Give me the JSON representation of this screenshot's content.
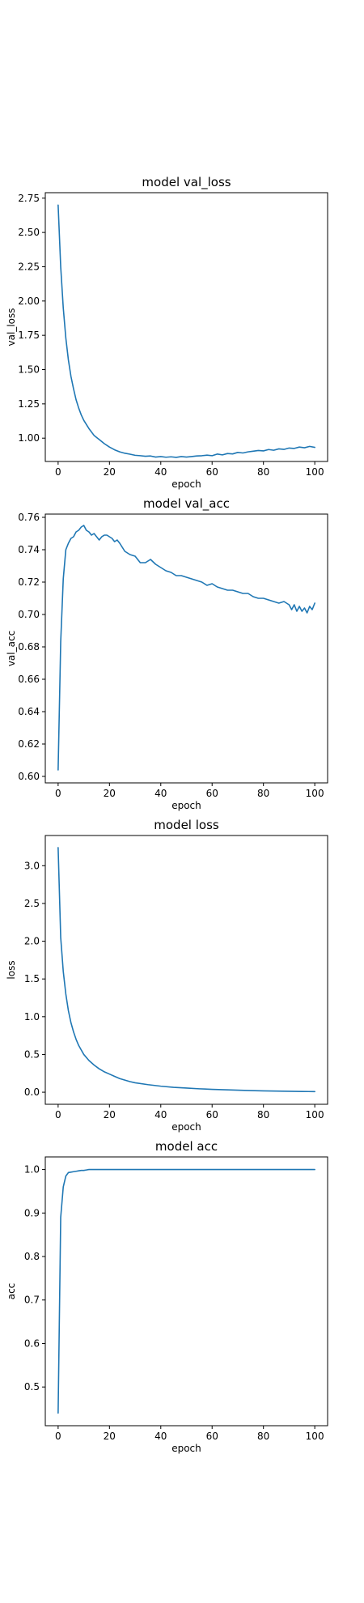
{
  "chart_data": [
    {
      "type": "line",
      "title": "model val_loss",
      "xlabel": "epoch",
      "ylabel": "val_loss",
      "xlim": [
        -5,
        105
      ],
      "ylim": [
        0.83,
        2.79
      ],
      "xticks": [
        0,
        20,
        40,
        60,
        80,
        100
      ],
      "xtick_labels": [
        "0",
        "20",
        "40",
        "60",
        "80",
        "100"
      ],
      "yticks": [
        1.0,
        1.25,
        1.5,
        1.75,
        2.0,
        2.25,
        2.5,
        2.75
      ],
      "ytick_labels": [
        "1.00",
        "1.25",
        "1.50",
        "1.75",
        "2.00",
        "2.25",
        "2.50",
        "2.75"
      ],
      "grid": false,
      "color": "#1f77b4",
      "series": [
        {
          "x": [
            0,
            1,
            2,
            3,
            4,
            5,
            6,
            7,
            8,
            9,
            10,
            12,
            14,
            16,
            18,
            20,
            22,
            24,
            26,
            28,
            30,
            32,
            34,
            36,
            38,
            40,
            42,
            44,
            46,
            48,
            50,
            52,
            54,
            56,
            58,
            60,
            62,
            64,
            66,
            68,
            70,
            72,
            74,
            76,
            78,
            80,
            82,
            84,
            86,
            88,
            90,
            92,
            94,
            96,
            98,
            100
          ],
          "values": [
            2.7,
            2.25,
            1.95,
            1.73,
            1.57,
            1.45,
            1.36,
            1.28,
            1.22,
            1.17,
            1.13,
            1.07,
            1.02,
            0.99,
            0.96,
            0.935,
            0.915,
            0.9,
            0.89,
            0.883,
            0.875,
            0.872,
            0.868,
            0.87,
            0.862,
            0.866,
            0.861,
            0.864,
            0.86,
            0.866,
            0.862,
            0.866,
            0.87,
            0.872,
            0.876,
            0.872,
            0.884,
            0.878,
            0.888,
            0.885,
            0.896,
            0.892,
            0.9,
            0.905,
            0.91,
            0.907,
            0.917,
            0.912,
            0.922,
            0.918,
            0.928,
            0.925,
            0.935,
            0.93,
            0.94,
            0.933
          ]
        }
      ]
    },
    {
      "type": "line",
      "title": "model val_acc",
      "xlabel": "epoch",
      "ylabel": "val_acc",
      "xlim": [
        -5,
        105
      ],
      "ylim": [
        0.596,
        0.762
      ],
      "xticks": [
        0,
        20,
        40,
        60,
        80,
        100
      ],
      "xtick_labels": [
        "0",
        "20",
        "40",
        "60",
        "80",
        "100"
      ],
      "yticks": [
        0.6,
        0.62,
        0.64,
        0.66,
        0.68,
        0.7,
        0.72,
        0.74,
        0.76
      ],
      "ytick_labels": [
        "0.60",
        "0.62",
        "0.64",
        "0.66",
        "0.68",
        "0.70",
        "0.72",
        "0.74",
        "0.76"
      ],
      "grid": false,
      "color": "#1f77b4",
      "series": [
        {
          "x": [
            0,
            1,
            2,
            3,
            4,
            5,
            6,
            7,
            8,
            9,
            10,
            11,
            12,
            13,
            14,
            15,
            16,
            17,
            18,
            19,
            20,
            21,
            22,
            23,
            24,
            26,
            28,
            30,
            32,
            34,
            36,
            38,
            40,
            42,
            44,
            46,
            48,
            50,
            52,
            54,
            56,
            58,
            60,
            62,
            64,
            66,
            68,
            70,
            72,
            74,
            76,
            78,
            80,
            82,
            84,
            86,
            88,
            90,
            91,
            92,
            93,
            94,
            95,
            96,
            97,
            98,
            99,
            100
          ],
          "values": [
            0.604,
            0.683,
            0.722,
            0.74,
            0.744,
            0.747,
            0.748,
            0.751,
            0.752,
            0.754,
            0.755,
            0.752,
            0.751,
            0.749,
            0.75,
            0.748,
            0.746,
            0.748,
            0.749,
            0.749,
            0.748,
            0.747,
            0.745,
            0.746,
            0.744,
            0.739,
            0.737,
            0.736,
            0.732,
            0.732,
            0.734,
            0.731,
            0.729,
            0.727,
            0.726,
            0.724,
            0.724,
            0.723,
            0.722,
            0.721,
            0.72,
            0.718,
            0.719,
            0.717,
            0.716,
            0.715,
            0.715,
            0.714,
            0.713,
            0.713,
            0.711,
            0.71,
            0.71,
            0.709,
            0.708,
            0.707,
            0.708,
            0.706,
            0.703,
            0.706,
            0.702,
            0.705,
            0.702,
            0.704,
            0.701,
            0.705,
            0.703,
            0.707
          ]
        }
      ]
    },
    {
      "type": "line",
      "title": "model loss",
      "xlabel": "epoch",
      "ylabel": "loss",
      "xlim": [
        -5,
        105
      ],
      "ylim": [
        -0.16,
        3.4
      ],
      "xticks": [
        0,
        20,
        40,
        60,
        80,
        100
      ],
      "xtick_labels": [
        "0",
        "20",
        "40",
        "60",
        "80",
        "100"
      ],
      "yticks": [
        0.0,
        0.5,
        1.0,
        1.5,
        2.0,
        2.5,
        3.0
      ],
      "ytick_labels": [
        "0.0",
        "0.5",
        "1.0",
        "1.5",
        "2.0",
        "2.5",
        "3.0"
      ],
      "grid": false,
      "color": "#1f77b4",
      "series": [
        {
          "x": [
            0,
            1,
            2,
            3,
            4,
            5,
            6,
            7,
            8,
            9,
            10,
            12,
            14,
            16,
            18,
            20,
            22,
            24,
            26,
            28,
            30,
            35,
            40,
            45,
            50,
            55,
            60,
            65,
            70,
            75,
            80,
            85,
            90,
            95,
            100
          ],
          "values": [
            3.24,
            2.05,
            1.6,
            1.3,
            1.08,
            0.92,
            0.8,
            0.7,
            0.62,
            0.56,
            0.5,
            0.42,
            0.36,
            0.31,
            0.27,
            0.24,
            0.21,
            0.18,
            0.16,
            0.14,
            0.125,
            0.1,
            0.08,
            0.065,
            0.055,
            0.045,
            0.038,
            0.032,
            0.027,
            0.022,
            0.018,
            0.015,
            0.012,
            0.01,
            0.008
          ]
        }
      ]
    },
    {
      "type": "line",
      "title": "model acc",
      "xlabel": "epoch",
      "ylabel": "acc",
      "xlim": [
        -5,
        105
      ],
      "ylim": [
        0.411,
        1.029
      ],
      "xticks": [
        0,
        20,
        40,
        60,
        80,
        100
      ],
      "xtick_labels": [
        "0",
        "20",
        "40",
        "60",
        "80",
        "100"
      ],
      "yticks": [
        0.5,
        0.6,
        0.7,
        0.8,
        0.9,
        1.0
      ],
      "ytick_labels": [
        "0.5",
        "0.6",
        "0.7",
        "0.8",
        "0.9",
        "1.0"
      ],
      "grid": false,
      "color": "#1f77b4",
      "series": [
        {
          "x": [
            0,
            1,
            2,
            3,
            4,
            5,
            6,
            7,
            8,
            9,
            10,
            11,
            12,
            20,
            40,
            60,
            80,
            100
          ],
          "values": [
            0.44,
            0.89,
            0.96,
            0.985,
            0.993,
            0.994,
            0.995,
            0.996,
            0.997,
            0.998,
            0.998,
            0.999,
            1.0,
            1.0,
            1.0,
            1.0,
            1.0,
            1.0
          ]
        }
      ]
    }
  ]
}
